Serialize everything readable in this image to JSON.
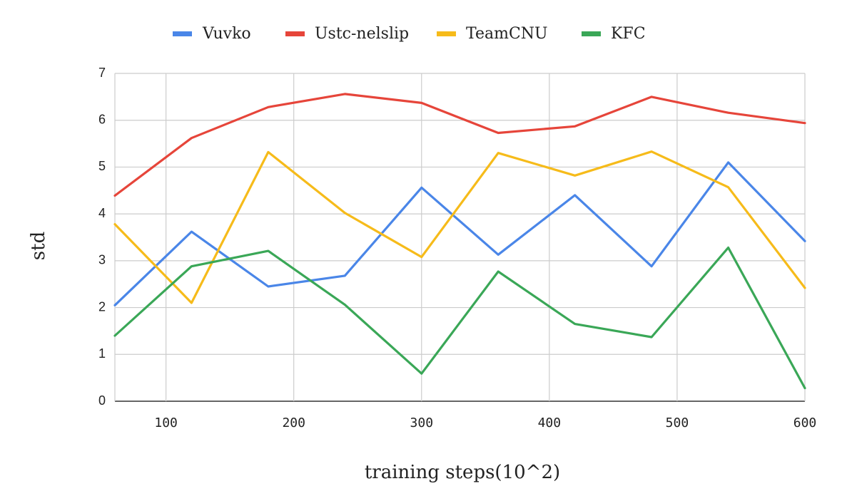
{
  "chart_data": {
    "type": "line",
    "xlabel": "training steps(10^2)",
    "ylabel": "std",
    "xlim": [
      60,
      600
    ],
    "ylim": [
      0,
      7
    ],
    "x_ticks": [
      100,
      200,
      300,
      400,
      500,
      600
    ],
    "y_ticks": [
      0,
      1,
      2,
      3,
      4,
      5,
      6,
      7
    ],
    "grid": true,
    "legend_position": "top",
    "x": [
      60,
      120,
      180,
      240,
      300,
      360,
      420,
      480,
      540,
      600
    ],
    "series": [
      {
        "name": "Vuvko",
        "color": "#4a86e8",
        "values": [
          2.05,
          3.62,
          2.45,
          2.68,
          4.56,
          3.13,
          4.4,
          2.88,
          5.1,
          3.42
        ]
      },
      {
        "name": "Ustc-nelslip",
        "color": "#e6453a",
        "values": [
          4.39,
          5.62,
          6.28,
          6.56,
          6.37,
          5.73,
          5.87,
          6.5,
          6.16,
          5.94
        ]
      },
      {
        "name": "TeamCNU",
        "color": "#f6bb1a",
        "values": [
          3.78,
          2.1,
          5.32,
          4.02,
          3.08,
          5.3,
          4.82,
          5.33,
          4.57,
          2.42
        ]
      },
      {
        "name": "KFC",
        "color": "#3aa757",
        "values": [
          1.4,
          2.88,
          3.21,
          2.06,
          0.59,
          2.77,
          1.65,
          1.37,
          3.28,
          0.28
        ]
      }
    ]
  }
}
